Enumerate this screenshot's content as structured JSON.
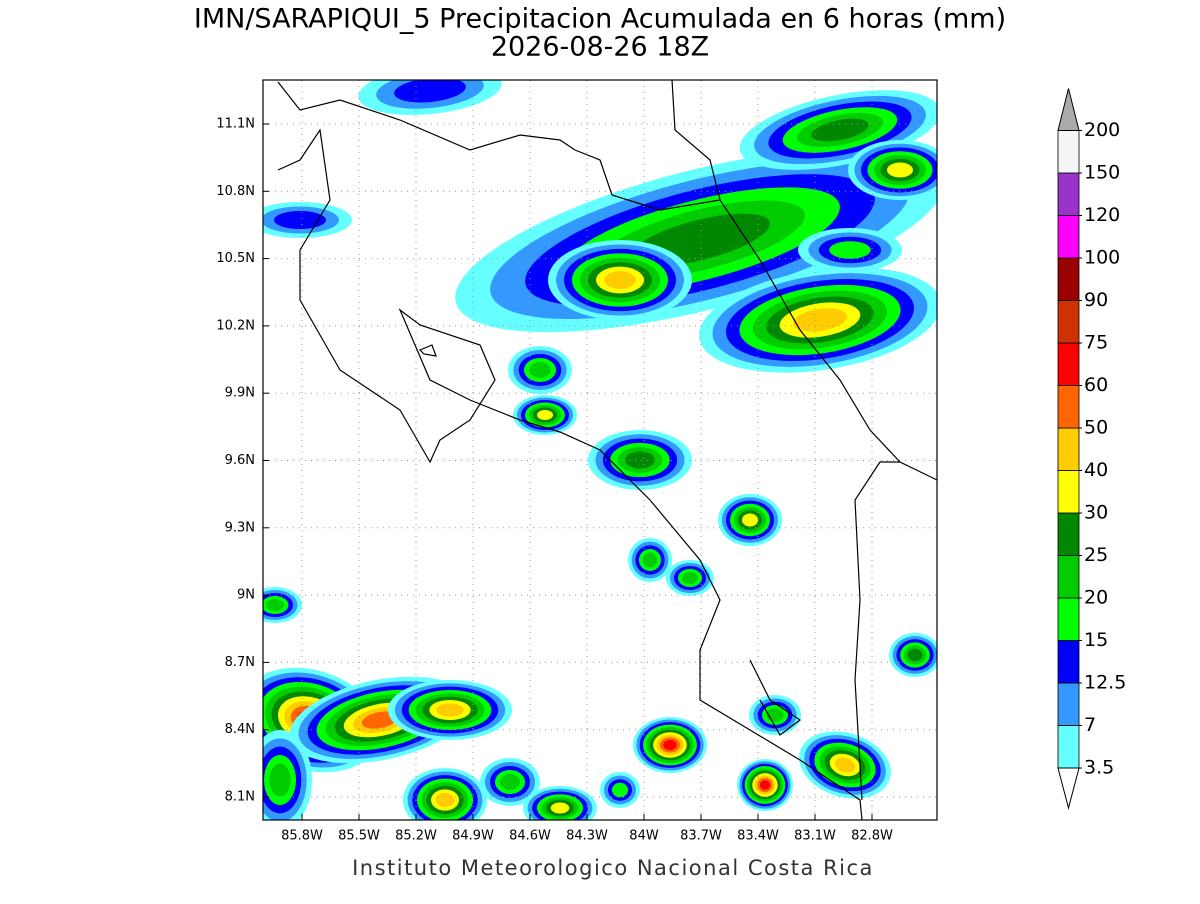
{
  "title": "IMN/SARAPIQUI_5 Precipitacion Acumulada en 6 horas (mm)",
  "subtitle": "2026-08-26 18Z",
  "map": {
    "lat_labels": [
      "11.1N",
      "10.8N",
      "10.5N",
      "10.2N",
      "9.9N",
      "9.6N",
      "9.3N",
      "9N",
      "8.7N",
      "8.4N",
      "8.1N"
    ],
    "lon_labels": [
      "85.8W",
      "85.5W",
      "85.2W",
      "84.9W",
      "84.6W",
      "84.3W",
      "84W",
      "83.7W",
      "83.4W",
      "83.1W",
      "82.8W"
    ]
  },
  "colorbar": {
    "levels": [
      3.5,
      7,
      12.5,
      15,
      20,
      25,
      30,
      40,
      50,
      60,
      75,
      90,
      100,
      120,
      150,
      200
    ],
    "colors": [
      "#66ffff",
      "#3399ff",
      "#0000ff",
      "#00ff00",
      "#00cc00",
      "#008800",
      "#ffff00",
      "#ffcc00",
      "#ff6600",
      "#ff0000",
      "#cc3300",
      "#990000",
      "#ff00ff",
      "#9933cc",
      "#f5f5f5"
    ],
    "over_color": "#aaaaaa",
    "under_color": "#ffffff"
  },
  "footer": "Instituto Meteorologico Nacional Costa Rica"
}
